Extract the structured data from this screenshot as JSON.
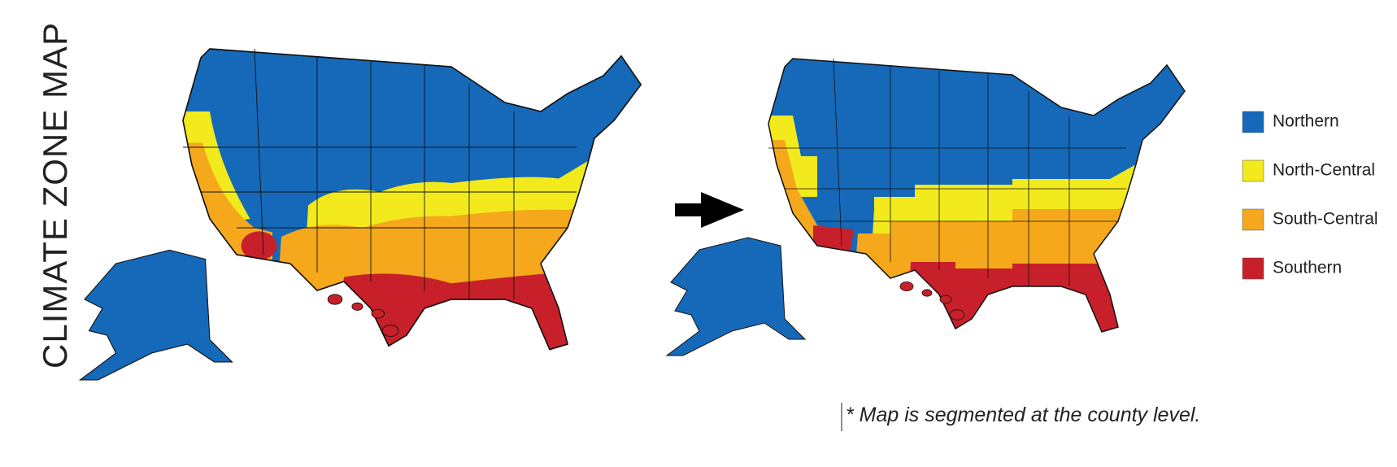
{
  "title": "CLIMATE ZONE MAP",
  "legend": {
    "items": [
      {
        "name": "Northern",
        "color": "#1569b8"
      },
      {
        "name": "North-Central",
        "color": "#f2ea1d"
      },
      {
        "name": "South-Central",
        "color": "#f5a81c"
      },
      {
        "name": "Southern",
        "color": "#c8202a"
      }
    ]
  },
  "footnote": "* Map is segmented at the county level."
}
